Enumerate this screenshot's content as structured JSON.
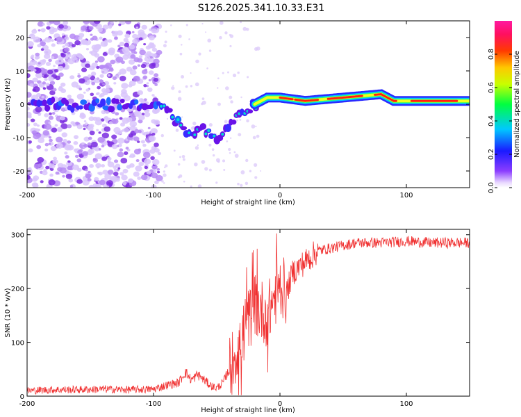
{
  "title": "S126.2025.341.10.33.E31",
  "chart_data": [
    {
      "type": "heatmap",
      "xlabel": "Height of straight line (km)",
      "ylabel": "Frequency (Hz)",
      "xlim": [
        -200,
        150
      ],
      "ylim": [
        -25,
        25
      ],
      "x_ticks": [
        -200,
        -100,
        0,
        100
      ],
      "x_tick_labels": [
        "-200",
        "-100",
        "0",
        "100"
      ],
      "y_ticks": [
        -20,
        -10,
        0,
        10,
        20
      ],
      "y_tick_labels": [
        "-20",
        "-10",
        "0",
        "10",
        "20"
      ],
      "colorbar": {
        "label": "Normalized spectral amplitude",
        "range": [
          0,
          1
        ],
        "ticks": [
          0.0,
          0.2,
          0.4,
          0.6,
          0.8
        ],
        "tick_labels": [
          "0.0",
          "0.2",
          "0.4",
          "0.6",
          "0.8"
        ]
      },
      "ridge_frequency": [
        {
          "x": -100,
          "f": 0
        },
        {
          "x": -90,
          "f": -2
        },
        {
          "x": -80,
          "f": -6
        },
        {
          "x": -70,
          "f": -10
        },
        {
          "x": -60,
          "f": -7
        },
        {
          "x": -50,
          "f": -11
        },
        {
          "x": -40,
          "f": -5
        },
        {
          "x": -30,
          "f": -2
        },
        {
          "x": -20,
          "f": 0
        },
        {
          "x": -10,
          "f": 2
        },
        {
          "x": 0,
          "f": 2
        },
        {
          "x": 20,
          "f": 1
        },
        {
          "x": 50,
          "f": 2
        },
        {
          "x": 80,
          "f": 3
        },
        {
          "x": 90,
          "f": 1
        },
        {
          "x": 100,
          "f": 1
        },
        {
          "x": 150,
          "f": 1
        }
      ]
    },
    {
      "type": "line",
      "xlabel": "Height of straight line (km)",
      "ylabel": "SNR (10 * v/v)",
      "xlim": [
        -200,
        150
      ],
      "ylim": [
        0,
        310
      ],
      "x_ticks": [
        -200,
        -100,
        0,
        100
      ],
      "x_tick_labels": [
        "-200",
        "-100",
        "0",
        "100"
      ],
      "y_ticks": [
        0,
        100,
        200,
        300
      ],
      "y_tick_labels": [
        "0",
        "100",
        "200",
        "300"
      ],
      "series": [
        {
          "name": "SNR",
          "color": "#f03030",
          "x": [
            -200,
            -180,
            -160,
            -140,
            -120,
            -100,
            -90,
            -80,
            -75,
            -70,
            -65,
            -60,
            -55,
            -50,
            -45,
            -40,
            -35,
            -30,
            -25,
            -20,
            -15,
            -10,
            -5,
            0,
            5,
            10,
            15,
            20,
            25,
            30,
            40,
            50,
            60,
            80,
            100,
            120,
            150
          ],
          "y": [
            10,
            12,
            12,
            13,
            12,
            13,
            20,
            25,
            45,
            30,
            40,
            30,
            20,
            15,
            25,
            50,
            80,
            110,
            140,
            170,
            160,
            150,
            180,
            210,
            190,
            230,
            240,
            250,
            260,
            270,
            275,
            280,
            285,
            285,
            288,
            285,
            285
          ]
        }
      ]
    }
  ]
}
